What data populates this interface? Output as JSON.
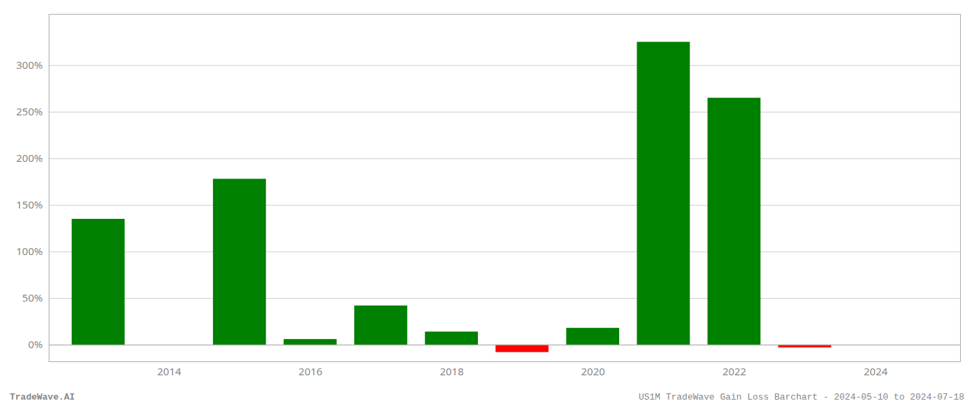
{
  "chart_data": {
    "type": "bar",
    "x": [
      2013,
      2015,
      2016,
      2017,
      2018,
      2019,
      2020,
      2021,
      2022,
      2023
    ],
    "values": [
      1.35,
      1.78,
      0.06,
      0.42,
      0.14,
      -0.08,
      0.18,
      3.25,
      2.65,
      -0.03
    ],
    "colors": [
      "#008000",
      "#008000",
      "#008000",
      "#008000",
      "#008000",
      "#ff0000",
      "#008000",
      "#008000",
      "#008000",
      "#ff0000"
    ],
    "xlim": [
      2012.3,
      2025.2
    ],
    "xticks": [
      2014,
      2016,
      2018,
      2020,
      2022,
      2024
    ],
    "ylim": [
      -0.18,
      3.55
    ],
    "yticks": [
      {
        "value": 0.0,
        "label": "0%"
      },
      {
        "value": 0.5,
        "label": "50%"
      },
      {
        "value": 1.0,
        "label": "100%"
      },
      {
        "value": 1.5,
        "label": "150%"
      },
      {
        "value": 2.0,
        "label": "200%"
      },
      {
        "value": 2.5,
        "label": "250%"
      },
      {
        "value": 3.0,
        "label": "300%"
      }
    ],
    "grid": true,
    "annotations": [
      "TradeWave.AI",
      "US1M TradeWave Gain Loss Barchart - 2024-05-10 to 2024-07-18"
    ]
  }
}
